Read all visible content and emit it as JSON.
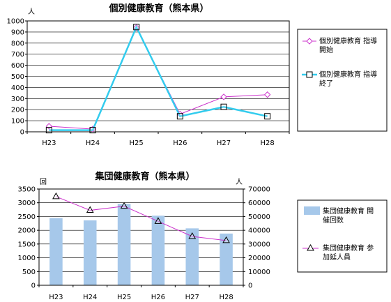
{
  "chart_data": [
    {
      "type": "line",
      "title": "個別健康教育（熊本県）",
      "unit_label": "人",
      "categories": [
        "H23",
        "H24",
        "H25",
        "H26",
        "H27",
        "H28"
      ],
      "ylim": [
        0,
        1000
      ],
      "y_ticks": [
        "0",
        "100",
        "200",
        "300",
        "400",
        "500",
        "600",
        "700",
        "800",
        "900",
        "1000"
      ],
      "grid": true,
      "legend_position": "right",
      "series": [
        {
          "name": "個別健康教育 指導開始",
          "legend_lines": [
            "個別健康教育 指導",
            "開始"
          ],
          "values": [
            50,
            25,
            940,
            160,
            315,
            335
          ],
          "color": "#cc33cc",
          "marker": "diamond"
        },
        {
          "name": "個別健康教育 指導終了",
          "legend_lines": [
            "個別健康教育 指導",
            "終了"
          ],
          "values": [
            15,
            15,
            945,
            140,
            225,
            140
          ],
          "color": "#33ccee",
          "marker": "square"
        }
      ]
    },
    {
      "type": "bar",
      "title": "集団健康教育（熊本県）",
      "left_unit_label": "回",
      "right_unit_label": "人",
      "categories": [
        "H23",
        "H24",
        "H25",
        "H26",
        "H27",
        "H28"
      ],
      "ylim": [
        0,
        3500
      ],
      "y_ticks": [
        "0",
        "500",
        "1000",
        "1500",
        "2000",
        "2500",
        "3000",
        "3500"
      ],
      "y2lim": [
        0,
        70000
      ],
      "y2_ticks": [
        "0",
        "10000",
        "20000",
        "30000",
        "40000",
        "50000",
        "60000",
        "70000"
      ],
      "grid": true,
      "legend_position": "right",
      "series": [
        {
          "name": "集団健康教育 開催回数",
          "legend_lines": [
            "集団健康教育 開",
            "催回数"
          ],
          "kind": "bar",
          "axis": "left",
          "values": [
            2440,
            2360,
            2960,
            2530,
            2070,
            1880
          ],
          "color": "#a6c8ea"
        },
        {
          "name": "集団健康教育 参加延人員",
          "legend_lines": [
            "集団健康教育 参",
            "加延人員"
          ],
          "kind": "line",
          "axis": "right",
          "values": [
            64500,
            54500,
            57500,
            46500,
            35500,
            32500
          ],
          "color": "#cc33cc",
          "marker": "triangle"
        }
      ]
    }
  ]
}
